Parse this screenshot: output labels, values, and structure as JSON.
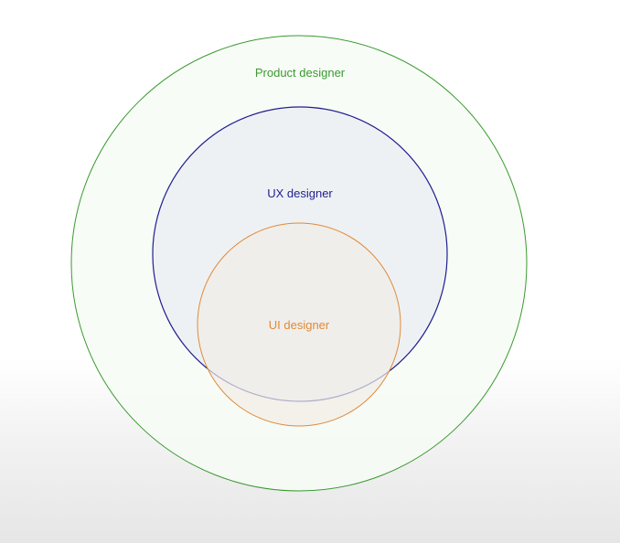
{
  "diagram": {
    "circles": [
      {
        "id": "product",
        "label": "Product designer",
        "stroke": "#3a9a2f",
        "fill": "#f7fbf6"
      },
      {
        "id": "ux",
        "label": "UX designer",
        "stroke": "#1f1f8f",
        "fill": "#eceef3"
      },
      {
        "id": "ui",
        "label": "UI designer",
        "stroke": "#e08a3a",
        "fill": "#f1ece6"
      }
    ]
  }
}
